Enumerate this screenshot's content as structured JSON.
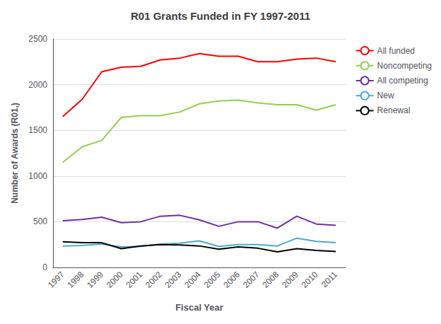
{
  "chart_data": {
    "type": "line",
    "title": "R01 Grants Funded in FY 1997-2011",
    "xlabel": "Fiscal Year",
    "ylabel": "Number of Awards (R01,)",
    "categories": [
      "1997",
      "1998",
      "1999",
      "2000",
      "2001",
      "2002",
      "2003",
      "2004",
      "2005",
      "2006",
      "2007",
      "2008",
      "2009",
      "2010",
      "2011"
    ],
    "series": [
      {
        "name": "All funded",
        "color": "#FF0000",
        "values": [
          1650,
          1840,
          2140,
          2190,
          2200,
          2270,
          2290,
          2340,
          2310,
          2310,
          2250,
          2250,
          2280,
          2290,
          2250
        ]
      },
      {
        "name": "Noncompeting",
        "color": "#92D050",
        "values": [
          1150,
          1320,
          1390,
          1640,
          1660,
          1660,
          1700,
          1790,
          1820,
          1830,
          1800,
          1780,
          1780,
          1720,
          1780
        ]
      },
      {
        "name": "All competing",
        "color": "#7030A0",
        "values": [
          510,
          525,
          550,
          490,
          500,
          560,
          570,
          520,
          450,
          500,
          500,
          430,
          560,
          475,
          460
        ]
      },
      {
        "name": "New",
        "color": "#4BACC6",
        "values": [
          235,
          240,
          255,
          225,
          230,
          255,
          265,
          290,
          230,
          250,
          250,
          235,
          320,
          285,
          270
        ]
      },
      {
        "name": "Renewal",
        "color": "#000000",
        "values": [
          280,
          270,
          270,
          205,
          235,
          250,
          245,
          235,
          200,
          225,
          210,
          170,
          205,
          185,
          175
        ]
      }
    ],
    "ylim": [
      0,
      2500
    ],
    "yticks": [
      0,
      500,
      1000,
      1500,
      2000,
      2500
    ],
    "grid": true,
    "legend": "right"
  }
}
